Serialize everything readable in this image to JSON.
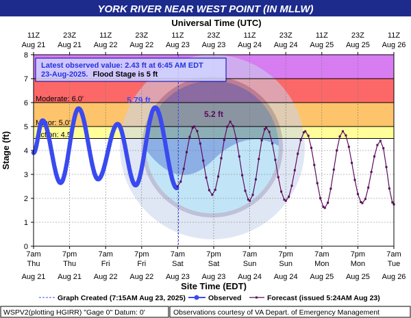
{
  "title": "YORK RIVER NEAR WEST POINT (IN MLLW)",
  "top_axis_title": "Universal Time (UTC)",
  "bottom_axis_title": "Site Time (EDT)",
  "ylabel": "Stage (ft)",
  "info_box": {
    "line1": "Latest observed value: 2.43 ft at 6:45 AM EDT",
    "line2_date": "23-Aug-2025.",
    "line2_rest": "Flood Stage is 5 ft"
  },
  "legend": {
    "created": "Graph Created (7:15AM Aug 23, 2025)",
    "observed": "Observed",
    "forecast": "Forecast (issued 5:24AM Aug 23)"
  },
  "footer": {
    "left": "WSPV2(plotting HGIRR) \"Gage 0\" Datum: 0'",
    "right": "Observations courtesy of VA Depart. of Emergency Management"
  },
  "colors": {
    "title_bg": "#1d2b8c",
    "observed": "#3a4af0",
    "forecast": "#5a0a5a",
    "major": "#d87cf2",
    "moderate": "#fc6868",
    "minor": "#fdc46b",
    "action": "#fffe99"
  },
  "chart_data": {
    "type": "line",
    "x_range": [
      "2025-08-21 07:00",
      "2025-08-26 07:00"
    ],
    "ylim": [
      0,
      8
    ],
    "yticks": [
      0,
      1,
      2,
      3,
      4,
      5,
      6,
      7,
      8
    ],
    "grid": true,
    "bottom_ticks": [
      {
        "t": "7am",
        "d": "Thu",
        "date": "Aug 21"
      },
      {
        "t": "7pm",
        "d": "Thu",
        "date": "Aug 21"
      },
      {
        "t": "7am",
        "d": "Fri",
        "date": "Aug 22"
      },
      {
        "t": "7pm",
        "d": "Fri",
        "date": "Aug 22"
      },
      {
        "t": "7am",
        "d": "Sat",
        "date": "Aug 23"
      },
      {
        "t": "7pm",
        "d": "Sat",
        "date": "Aug 23"
      },
      {
        "t": "7am",
        "d": "Sun",
        "date": "Aug 24"
      },
      {
        "t": "7pm",
        "d": "Sun",
        "date": "Aug 24"
      },
      {
        "t": "7am",
        "d": "Mon",
        "date": "Aug 25"
      },
      {
        "t": "7pm",
        "d": "Mon",
        "date": "Aug 25"
      },
      {
        "t": "7am",
        "d": "Tue",
        "date": "Aug 26"
      }
    ],
    "top_ticks": [
      {
        "t": "11Z",
        "date": "Aug 21"
      },
      {
        "t": "23Z",
        "date": "Aug 21"
      },
      {
        "t": "11Z",
        "date": "Aug 22"
      },
      {
        "t": "23Z",
        "date": "Aug 22"
      },
      {
        "t": "11Z",
        "date": "Aug 23"
      },
      {
        "t": "23Z",
        "date": "Aug 23"
      },
      {
        "t": "11Z",
        "date": "Aug 24"
      },
      {
        "t": "23Z",
        "date": "Aug 24"
      },
      {
        "t": "11Z",
        "date": "Aug 25"
      },
      {
        "t": "23Z",
        "date": "Aug 25"
      },
      {
        "t": "11Z",
        "date": "Aug 26"
      }
    ],
    "flood_categories": [
      {
        "name": "Major",
        "from": 7,
        "to": 8,
        "label": ""
      },
      {
        "name": "Moderate",
        "from": 6,
        "to": 7,
        "label": "Moderate: 6.0'"
      },
      {
        "name": "Minor",
        "from": 5,
        "to": 6,
        "label": "Minor: 5.0'"
      },
      {
        "name": "Action",
        "from": 4.5,
        "to": 5,
        "label": "Action: 4.5'"
      }
    ],
    "graph_created_time": "2025-08-23 07:15",
    "annotations": [
      {
        "text": "5.79 ft",
        "x": "2025-08-22 18:00",
        "y": 5.79,
        "series": "observed"
      },
      {
        "text": "5.2 ft",
        "x": "2025-08-23 19:00",
        "y": 5.2,
        "series": "forecast"
      }
    ],
    "observed": {
      "name": "Observed",
      "tides": [
        {
          "x": "2025-08-21 07:00",
          "y": 3.9
        },
        {
          "x": "2025-08-21 10:00",
          "y": 5.25
        },
        {
          "x": "2025-08-21 16:00",
          "y": 2.65
        },
        {
          "x": "2025-08-21 22:00",
          "y": 5.75
        },
        {
          "x": "2025-08-22 04:30",
          "y": 2.8
        },
        {
          "x": "2025-08-22 11:00",
          "y": 5.1
        },
        {
          "x": "2025-08-22 17:00",
          "y": 2.55
        },
        {
          "x": "2025-08-22 23:30",
          "y": 5.79
        },
        {
          "x": "2025-08-23 06:45",
          "y": 2.43
        }
      ]
    },
    "forecast": {
      "name": "Forecast (issued 5:24AM Aug 23)",
      "tides": [
        {
          "x": "2025-08-23 07:00",
          "y": 2.5
        },
        {
          "x": "2025-08-23 12:30",
          "y": 5.0
        },
        {
          "x": "2025-08-23 18:30",
          "y": 2.15
        },
        {
          "x": "2025-08-24 00:30",
          "y": 5.2
        },
        {
          "x": "2025-08-24 07:00",
          "y": 1.9
        },
        {
          "x": "2025-08-24 12:30",
          "y": 4.95
        },
        {
          "x": "2025-08-24 19:00",
          "y": 1.9
        },
        {
          "x": "2025-08-25 01:30",
          "y": 4.8
        },
        {
          "x": "2025-08-25 08:00",
          "y": 1.6
        },
        {
          "x": "2025-08-25 14:00",
          "y": 4.8
        },
        {
          "x": "2025-08-25 20:30",
          "y": 1.8
        },
        {
          "x": "2025-08-26 02:30",
          "y": 4.4
        },
        {
          "x": "2025-08-26 07:00",
          "y": 1.75
        }
      ]
    }
  }
}
